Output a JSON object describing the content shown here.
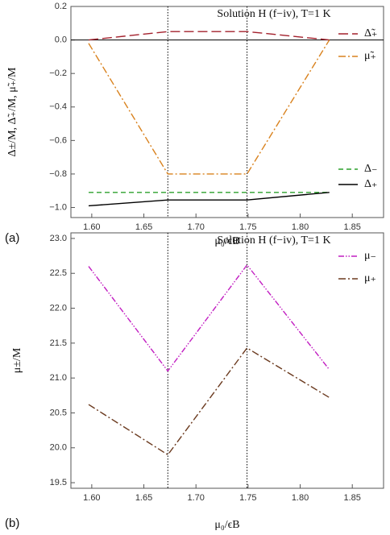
{
  "chart_data": [
    {
      "type": "line",
      "panel_label": "(a)",
      "title": "Solution H (f−iv), T=1 K",
      "x_label": "μ₀/ϵB",
      "y_label": "Δ±/M, Δ̃₊/M, μ̃₊/M",
      "x": [
        1.597,
        1.673,
        1.749,
        1.828
      ],
      "series": [
        {
          "name": "Δ̃₊",
          "color": "#a3202c",
          "dash": "long-dash",
          "values": [
            0.0,
            0.05,
            0.05,
            0.0
          ]
        },
        {
          "name": "μ̃₊",
          "color": "#d9821e",
          "dash": "dash-dot",
          "values": [
            -0.02,
            -0.8,
            -0.8,
            0.0
          ]
        },
        {
          "name": "Δ₋",
          "color": "#2ca02c",
          "dash": "dash",
          "values": [
            -0.91,
            -0.91,
            -0.91,
            -0.91
          ]
        },
        {
          "name": "Δ₊",
          "color": "#000000",
          "dash": "solid",
          "values": [
            -0.99,
            -0.955,
            -0.955,
            -0.91
          ]
        }
      ],
      "xlim": [
        1.58,
        1.88
      ],
      "xticks": [
        {
          "value": 1.6,
          "label": "1.60"
        },
        {
          "value": 1.65,
          "label": "1.65"
        },
        {
          "value": 1.7,
          "label": "1.70"
        },
        {
          "value": 1.75,
          "label": "1.75"
        },
        {
          "value": 1.8,
          "label": "1.80"
        },
        {
          "value": 1.85,
          "label": "1.85"
        }
      ],
      "ylim": [
        -1.06,
        0.2
      ],
      "yticks": [
        {
          "value": 0.2,
          "label": "0.2"
        },
        {
          "value": 0.0,
          "label": "0.0"
        },
        {
          "value": -0.2,
          "label": "−0.2"
        },
        {
          "value": -0.4,
          "label": "−0.4"
        },
        {
          "value": -0.6,
          "label": "−0.6"
        },
        {
          "value": -0.8,
          "label": "−0.8"
        },
        {
          "value": -1.0,
          "label": "−1.0"
        }
      ],
      "hlines": [
        0.0
      ],
      "vlines": [
        1.673,
        1.749
      ]
    },
    {
      "type": "line",
      "panel_label": "(b)",
      "title": "Solution H (f−iv), T=1 K",
      "x_label": "μ₀/ϵB",
      "y_label": "μ±/M",
      "x": [
        1.597,
        1.673,
        1.749,
        1.828
      ],
      "series": [
        {
          "name": "μ₋",
          "color": "#c21ec2",
          "dash": "dash-dot-dot",
          "values": [
            22.6,
            21.1,
            22.62,
            21.12
          ]
        },
        {
          "name": "μ₊",
          "color": "#6b3a1f",
          "dash": "dash-dot",
          "values": [
            20.62,
            19.9,
            21.43,
            20.72
          ]
        }
      ],
      "xlim": [
        1.58,
        1.88
      ],
      "xticks": [
        {
          "value": 1.6,
          "label": "1.60"
        },
        {
          "value": 1.65,
          "label": "1.65"
        },
        {
          "value": 1.7,
          "label": "1.70"
        },
        {
          "value": 1.75,
          "label": "1.75"
        },
        {
          "value": 1.8,
          "label": "1.80"
        },
        {
          "value": 1.85,
          "label": "1.85"
        }
      ],
      "ylim": [
        19.42,
        23.08
      ],
      "yticks": [
        {
          "value": 23.0,
          "label": "23.0"
        },
        {
          "value": 22.5,
          "label": "22.5"
        },
        {
          "value": 22.0,
          "label": "22.0"
        },
        {
          "value": 21.5,
          "label": "21.5"
        },
        {
          "value": 21.0,
          "label": "21.0"
        },
        {
          "value": 20.5,
          "label": "20.5"
        },
        {
          "value": 20.0,
          "label": "20.0"
        },
        {
          "value": 19.5,
          "label": "19.5"
        }
      ],
      "hlines": [],
      "vlines": [
        1.673,
        1.749
      ]
    }
  ]
}
